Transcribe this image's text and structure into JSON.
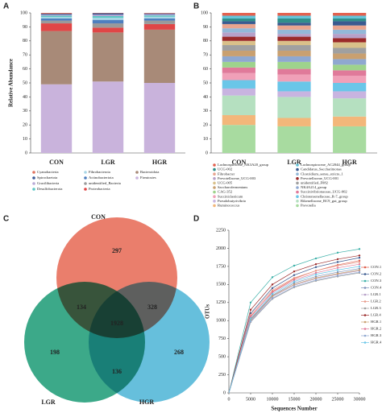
{
  "chart_data": [
    {
      "type": "stacked_bar",
      "panel_label": "A",
      "y_label": "Relative Abundance",
      "categories": [
        "CON",
        "LGR",
        "HGR"
      ],
      "ylim": [
        0,
        100
      ],
      "yticks": [
        0,
        10,
        20,
        30,
        40,
        50,
        60,
        70,
        80,
        90,
        100
      ],
      "legend_columns": 3,
      "series": [
        {
          "name": "Cyanobacteria",
          "color": "#e0735f",
          "values": [
            0.6,
            0.3,
            0.4
          ]
        },
        {
          "name": "Spirochaetota",
          "color": "#3b5a98",
          "values": [
            0.7,
            1,
            0.6
          ]
        },
        {
          "name": "Gracilibacteria",
          "color": "#b9a9d6",
          "values": [
            0.7,
            1,
            0.8
          ]
        },
        {
          "name": "Desulfobacterota",
          "color": "#5cc6c4",
          "values": [
            1,
            1.2,
            1
          ]
        },
        {
          "name": "Fibrobacterota",
          "color": "#a9d6e6",
          "values": [
            1,
            1.5,
            1.2
          ]
        },
        {
          "name": "Actinobacteriota",
          "color": "#4f7fbf",
          "values": [
            1.5,
            2.5,
            1.5
          ]
        },
        {
          "name": "unidentified_Bacteria",
          "color": "#9a9a9a",
          "values": [
            2,
            3,
            2.5
          ]
        },
        {
          "name": "Proteobacteria",
          "color": "#e04646",
          "values": [
            5.5,
            3.5,
            4
          ]
        },
        {
          "name": "Bacteroidota",
          "color": "#a88a78",
          "values": [
            38,
            35,
            38
          ]
        },
        {
          "name": "Firmicutes",
          "color": "#c9b3dc",
          "values": [
            49,
            51,
            50
          ]
        }
      ]
    },
    {
      "type": "stacked_bar",
      "panel_label": "B",
      "categories": [
        "CON",
        "LGR",
        "HGR"
      ],
      "ylim": [
        0,
        100
      ],
      "yticks": [
        0,
        10,
        20,
        30,
        40,
        50,
        60,
        70,
        80,
        90,
        100
      ],
      "legend_columns": 2,
      "series": [
        {
          "name": "Lachnospiraceae_NK3A20_group",
          "color": "#e2614f",
          "values": [
            2,
            2,
            2
          ]
        },
        {
          "name": "Lachnospiraceae_AC2044_group",
          "color": "#63c3d8",
          "values": [
            2,
            2,
            2
          ]
        },
        {
          "name": "UCG-002",
          "color": "#2f8f8a",
          "values": [
            2,
            3,
            2
          ]
        },
        {
          "name": "Candidatus_Saccharimonas",
          "color": "#3a5a90",
          "values": [
            2,
            2,
            3
          ]
        },
        {
          "name": "Fibrobacter",
          "color": "#e8a58f",
          "values": [
            3,
            3,
            3
          ]
        },
        {
          "name": "Clostridium_sensu_stricto_1",
          "color": "#93b8d8",
          "values": [
            3,
            3,
            3
          ]
        },
        {
          "name": "Prevotellaceae_UCG-003",
          "color": "#b7a0c8",
          "values": [
            3,
            2,
            3
          ]
        },
        {
          "name": "Prevotellaceae_UCG-001",
          "color": "#9b2a2a",
          "values": [
            3,
            3,
            3
          ]
        },
        {
          "name": "UCG-005",
          "color": "#d9c08a",
          "values": [
            3,
            3,
            4
          ]
        },
        {
          "name": "unidentified_F082",
          "color": "#a0a0a0",
          "values": [
            4,
            4,
            4
          ]
        },
        {
          "name": "Saccharofermentans",
          "color": "#c9a070",
          "values": [
            4,
            4,
            4
          ]
        },
        {
          "name": "NK4A214_group",
          "color": "#8fa8d0",
          "values": [
            4,
            4,
            4
          ]
        },
        {
          "name": "CAG-352",
          "color": "#9ed38c",
          "values": [
            4,
            5,
            4
          ]
        },
        {
          "name": "Succinivibrionaceae_UCG-002",
          "color": "#e07a9a",
          "values": [
            4,
            4,
            4
          ]
        },
        {
          "name": "Succiniclasticum",
          "color": "#f0a0b8",
          "values": [
            5,
            5,
            5
          ]
        },
        {
          "name": "Christensenellaceae_R-7_group",
          "color": "#6ac6e8",
          "values": [
            6,
            7,
            6
          ]
        },
        {
          "name": "Pseudobutyrivibrio",
          "color": "#c8b4e0",
          "values": [
            5,
            4,
            5
          ]
        },
        {
          "name": "Rikenellaceae_RC9_gut_group",
          "color": "#b5e0c0",
          "values": [
            14,
            15,
            13
          ]
        },
        {
          "name": "Ruminococcus",
          "color": "#f3b77a",
          "values": [
            7,
            6,
            7
          ]
        },
        {
          "name": "Prevotella",
          "color": "#a8dba0",
          "values": [
            20,
            19,
            19
          ]
        }
      ]
    },
    {
      "type": "venn",
      "panel_label": "C",
      "sets": [
        {
          "name": "CON",
          "color": "#e8705c"
        },
        {
          "name": "LGR",
          "color": "#27a07c"
        },
        {
          "name": "HGR",
          "color": "#55b8d8"
        }
      ],
      "regions": {
        "CON": 297,
        "LGR": 198,
        "HGR": 268,
        "CON&LGR": 134,
        "CON&HGR": 328,
        "LGR&HGR": 136,
        "CON&LGR&HGR": 1928
      }
    },
    {
      "type": "line",
      "panel_label": "D",
      "x_label": "Sequences Number",
      "y_label": "OTUs",
      "x": [
        0,
        5000,
        10000,
        15000,
        20000,
        25000,
        30000
      ],
      "xlim": [
        0,
        30000
      ],
      "xticks": [
        0,
        5000,
        10000,
        15000,
        20000,
        25000,
        30000
      ],
      "ylim": [
        0,
        2250
      ],
      "yticks": [
        0,
        250,
        500,
        750,
        1000,
        1250,
        1500,
        1750,
        2000,
        2250
      ],
      "series": [
        {
          "name": "CON.1",
          "color": "#e0614f",
          "values": [
            0,
            1050,
            1400,
            1580,
            1690,
            1770,
            1830
          ]
        },
        {
          "name": "CON.2",
          "color": "#3a5a90",
          "values": [
            0,
            1100,
            1450,
            1630,
            1740,
            1810,
            1870
          ]
        },
        {
          "name": "CON.3",
          "color": "#3bb0a8",
          "values": [
            0,
            1250,
            1600,
            1760,
            1860,
            1940,
            1990
          ]
        },
        {
          "name": "CON.4",
          "color": "#7a8fb8",
          "values": [
            0,
            1020,
            1350,
            1520,
            1610,
            1670,
            1720
          ]
        },
        {
          "name": "LGR.1",
          "color": "#b7a0c8",
          "values": [
            0,
            1000,
            1330,
            1490,
            1580,
            1640,
            1690
          ]
        },
        {
          "name": "LGR.2",
          "color": "#e89a8a",
          "values": [
            0,
            1080,
            1420,
            1590,
            1690,
            1760,
            1810
          ]
        },
        {
          "name": "LGR.3",
          "color": "#a0a0a0",
          "values": [
            0,
            980,
            1300,
            1460,
            1550,
            1610,
            1660
          ]
        },
        {
          "name": "LGR.4",
          "color": "#9b2a2a",
          "values": [
            0,
            1150,
            1500,
            1680,
            1780,
            1850,
            1900
          ]
        },
        {
          "name": "HGR.1",
          "color": "#c9a070",
          "values": [
            0,
            1010,
            1340,
            1500,
            1590,
            1650,
            1700
          ]
        },
        {
          "name": "HGR.2",
          "color": "#e07a9a",
          "values": [
            0,
            1060,
            1390,
            1560,
            1660,
            1730,
            1780
          ]
        },
        {
          "name": "HGR.3",
          "color": "#8fa8d0",
          "values": [
            0,
            990,
            1310,
            1470,
            1560,
            1620,
            1670
          ]
        },
        {
          "name": "HGR.4",
          "color": "#6ac6e8",
          "values": [
            0,
            1030,
            1370,
            1540,
            1640,
            1700,
            1750
          ]
        }
      ]
    }
  ]
}
